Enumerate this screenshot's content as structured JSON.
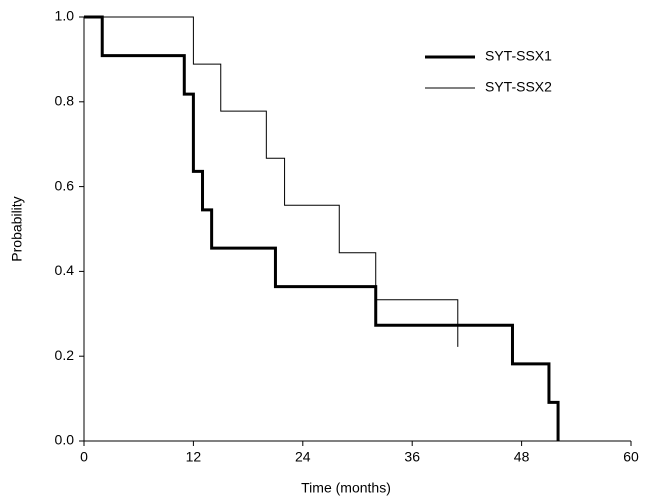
{
  "chart_data": {
    "type": "step",
    "xlabel": "Time (months)",
    "ylabel": "Probability",
    "xlim": [
      0,
      60
    ],
    "ylim": [
      0,
      1
    ],
    "xticks": [
      0,
      12,
      24,
      36,
      48,
      60
    ],
    "yticks": [
      {
        "value": 0,
        "label": "0.0"
      },
      0.2,
      0.4,
      0.6,
      0.8,
      {
        "value": 1,
        "label": "1.0"
      }
    ],
    "legend": "upper right",
    "series": [
      {
        "name": "SYT-SSX1",
        "color": "#000000",
        "width": 3,
        "x": [
          0,
          2,
          11,
          12,
          13,
          14,
          21,
          32,
          47,
          51,
          52
        ],
        "values": [
          1,
          0.909,
          0.818,
          0.636,
          0.545,
          0.455,
          0.364,
          0.273,
          0.182,
          0.091,
          0
        ]
      },
      {
        "name": "SYT-SSX2",
        "color": "#000000",
        "width": 1,
        "x": [
          0,
          12,
          15,
          20,
          22,
          28,
          32,
          41
        ],
        "values": [
          1,
          0.889,
          0.778,
          0.667,
          0.556,
          0.444,
          0.333,
          0.222
        ]
      }
    ]
  }
}
